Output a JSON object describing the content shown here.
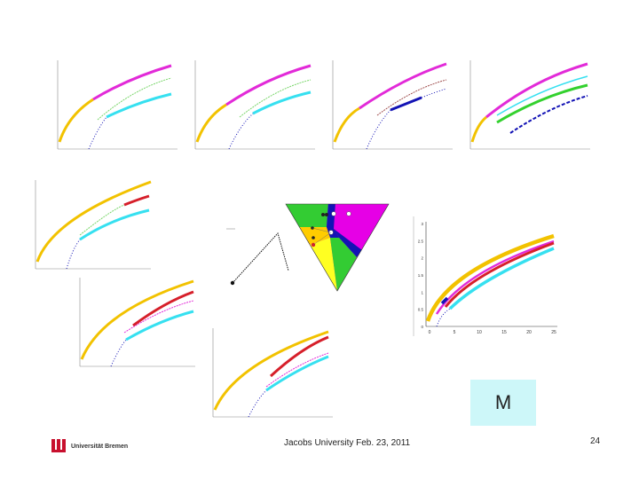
{
  "slide": {
    "footer": "Jacobs University Feb. 23, 2011",
    "page_number": "24",
    "box_label": "M",
    "logo_text": "Universität Bremen"
  },
  "colors": {
    "yellow": "#f2c200",
    "magenta": "#e22ad8",
    "cyan": "#36e0f0",
    "green": "#33d12e",
    "red": "#d61f2a",
    "blue": "#1313b5",
    "box_bg": "#cdf7f9",
    "logo_red": "#c8102e"
  },
  "big_plot": {
    "y_ticks": [
      "0",
      "0.5",
      "1",
      "1.5",
      "2",
      "2.5",
      "3"
    ],
    "x_ticks": [
      "0",
      "5",
      "10",
      "15",
      "20",
      "25"
    ]
  },
  "icons": {
    "logo": "university-logo-icon"
  }
}
